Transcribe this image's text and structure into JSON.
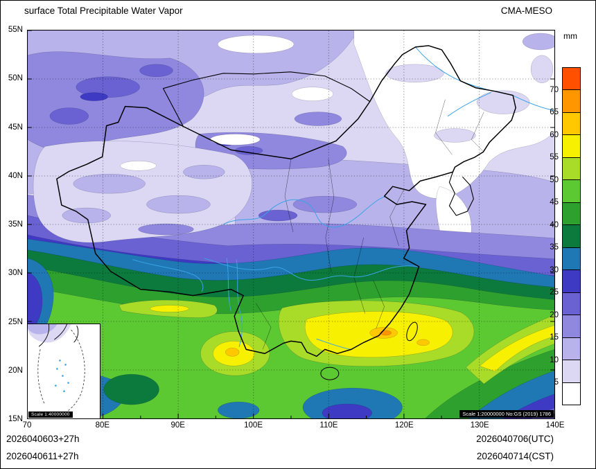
{
  "header": {
    "title": "surface Total Precipitable Water Vapor",
    "model": "CMA-MESO"
  },
  "colorbar": {
    "unit": "mm",
    "levels": [
      5,
      10,
      15,
      20,
      25,
      30,
      35,
      40,
      45,
      50,
      55,
      60,
      65,
      70
    ],
    "colors": [
      "#FFFFFF",
      "#DCD8F4",
      "#B8B3EA",
      "#8F88DE",
      "#6A62D2",
      "#3F3AC4",
      "#1F78B4",
      "#0B7A3C",
      "#2DA02D",
      "#5CC832",
      "#A8DC28",
      "#F7F000",
      "#FFC800",
      "#FF9600",
      "#FF5000"
    ]
  },
  "axes": {
    "lat": [
      "55N",
      "50N",
      "45N",
      "40N",
      "35N",
      "30N",
      "25N",
      "20N",
      "15N"
    ],
    "lon": [
      "70",
      "80E",
      "90E",
      "100E",
      "110E",
      "120E",
      "130E",
      "140E"
    ]
  },
  "footer": {
    "init_utc": "2026040603+27h",
    "init_cst": "2026040611+27h",
    "valid_utc": "2026040706(UTC)",
    "valid_cst": "2026040714(CST)"
  },
  "scale_notes": {
    "inset": "Scale 1:40000000",
    "main": "Scale 1:20000000 No:GS (2019) 1786"
  },
  "map": {
    "river_color": "#3BA3E8",
    "boundary_color": "#000000"
  }
}
